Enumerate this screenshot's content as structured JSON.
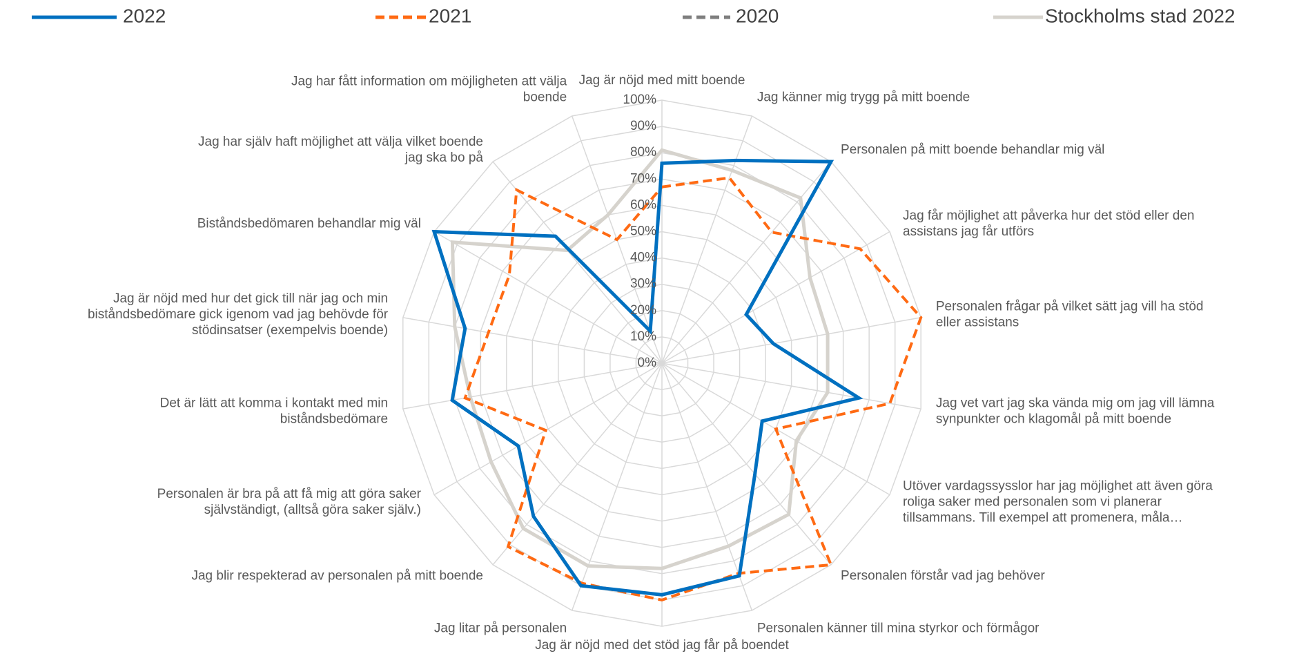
{
  "chart_data": {
    "type": "radar",
    "categories": [
      "Jag är nöjd med mitt boende",
      "Jag känner mig trygg på mitt boende",
      "Personalen på mitt boende behandlar mig väl",
      "Jag får möjlighet att påverka hur det stöd eller den assistans jag får utförs",
      "Personalen frågar på vilket sätt jag vill ha stöd eller assistans",
      "Jag vet vart jag ska vända mig om jag vill lämna synpunkter och klagomål på mitt boende",
      "Utöver vardagssysslor har jag möjlighet att även göra roliga saker med personalen som vi planerar tillsammans. Till exempel att promenera, måla…",
      "Personalen förstår vad jag behöver",
      "Personalen känner till mina styrkor och förmågor",
      "Jag är nöjd med det stöd jag får på boendet",
      "Jag litar på personalen",
      "Jag blir respekterad av personalen på mitt boende",
      "Personalen är bra på att få mig att göra saker självständigt, (alltså göra saker själv.)",
      "Det är lätt att komma i kontakt med min biståndsbedömare",
      "Jag är nöjd med hur det gick till när jag och min biståndsbedömare gick igenom vad jag behövde för stödinsatser (exempelvis boende)",
      "Biståndsbedömaren behandlar mig väl",
      "Jag har själv haft möjlighet att välja vilket boende jag ska bo på",
      "Jag har fått information om möjligheten att välja boende"
    ],
    "series": [
      {
        "name": "2022",
        "color": "#0070c0",
        "dash": false,
        "values": [
          76,
          82,
          100,
          37,
          43,
          76,
          44,
          55,
          86,
          88,
          90,
          76,
          63,
          81,
          76,
          100,
          63,
          13
        ]
      },
      {
        "name": "2021",
        "color": "#ff6a13",
        "dash": true,
        "values": [
          67,
          75,
          65,
          87,
          100,
          88,
          50,
          100,
          85,
          90,
          89,
          91,
          51,
          76,
          67,
          67,
          86,
          50
        ]
      },
      {
        "name": "2020",
        "color": "#7f7f7f",
        "dash": true,
        "values": [
          null,
          null,
          null,
          null,
          null,
          null,
          null,
          null,
          null,
          null,
          null,
          null,
          null,
          null,
          null,
          null,
          null,
          null
        ]
      },
      {
        "name": "Stockholms stad 2022",
        "color": "#d6d3cd",
        "dash": false,
        "values": [
          81,
          78,
          82,
          65,
          64,
          64,
          59,
          75,
          74,
          78,
          82,
          82,
          75,
          74,
          80,
          92,
          56,
          60
        ]
      }
    ],
    "ylim": [
      0,
      100
    ],
    "yticks": [
      {
        "value": 0,
        "label": "0%"
      },
      {
        "value": 10,
        "label": "10%"
      },
      {
        "value": 20,
        "label": "20%"
      },
      {
        "value": 30,
        "label": "30%"
      },
      {
        "value": 40,
        "label": "40%"
      },
      {
        "value": 50,
        "label": "50%"
      },
      {
        "value": 60,
        "label": "60%"
      },
      {
        "value": 70,
        "label": "70%"
      },
      {
        "value": 80,
        "label": "80%"
      },
      {
        "value": 90,
        "label": "90%"
      },
      {
        "value": 100,
        "label": "100%"
      }
    ],
    "grid": true,
    "legend": "top"
  }
}
